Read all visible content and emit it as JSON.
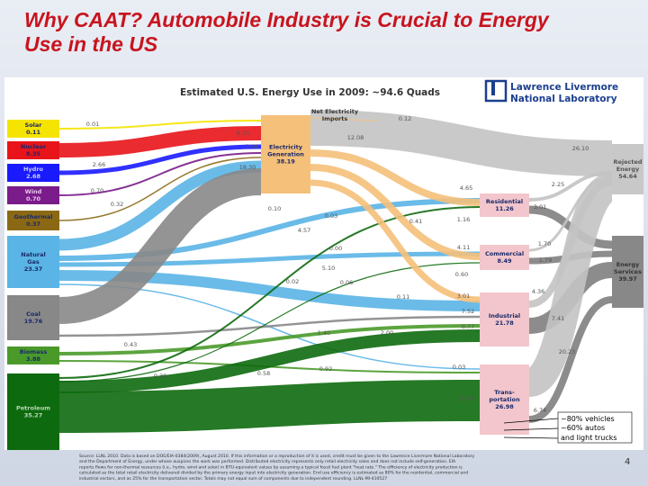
{
  "title": "Why CAAT? Automobile Industry is Crucial to Energy Use in the US",
  "diagram_title": "Estimated U.S. Energy Use in 2009: ~94.6 Quads",
  "logo": [
    "Lawrence Livermore",
    "National Laboratory"
  ],
  "nodes": [
    {
      "lines": [
        "Solar"
      ],
      "value": "0.11"
    },
    {
      "lines": [
        "Nuclear"
      ],
      "value": "8.35"
    },
    {
      "lines": [
        "Hydro"
      ],
      "value": "2.68"
    },
    {
      "lines": [
        "Wind"
      ],
      "value": "0.70"
    },
    {
      "lines": [
        "Geothermal"
      ],
      "value": "0.37"
    },
    {
      "lines": [
        "Natural",
        "Gas"
      ],
      "value": "23.37"
    },
    {
      "lines": [
        "Coal"
      ],
      "value": "19.76"
    },
    {
      "lines": [
        "Biomass"
      ],
      "value": "3.88"
    },
    {
      "lines": [
        "Petroleum"
      ],
      "value": "35.27"
    },
    {
      "lines": [
        "Electricity",
        "Generation"
      ],
      "value": "38.19"
    },
    {
      "lines": [
        "Residential"
      ],
      "value": "11.26"
    },
    {
      "lines": [
        "Commercial"
      ],
      "value": "8.49"
    },
    {
      "lines": [
        "Industrial"
      ],
      "value": "21.78"
    },
    {
      "lines": [
        "Trans-",
        "portation"
      ],
      "value": "26.98"
    },
    {
      "lines": [
        "Rejected",
        "Energy"
      ],
      "value": "54.64"
    },
    {
      "lines": [
        "Energy",
        "Services"
      ],
      "value": "39.97"
    }
  ],
  "imports": {
    "lines": [
      "Net Electricity",
      "Imports"
    ],
    "value": "0.12"
  },
  "flow_labels": [
    "0.01",
    "8.35",
    "7.06",
    "2.66",
    "18.30",
    "0.70",
    "0.32",
    "12.08",
    "26.10",
    "4.65",
    "2.25",
    "3.01",
    "0.10",
    "0.03",
    "0.41",
    "1.16",
    "4.57",
    "0.00",
    "4.11",
    "1.70",
    "1.79",
    "5.10",
    "0.60",
    "0.02",
    "0.06",
    "0.11",
    "3.01",
    "4.36",
    "7.52",
    "7.41",
    "1.40",
    "2.00",
    "0.77",
    "0.43",
    "20.23",
    "0.39",
    "0.58",
    "0.92",
    "0.03",
    "25.34",
    "6.74"
  ],
  "annotation": [
    "~80% vehicles",
    "~60% autos",
    "and light trucks"
  ],
  "footnote": [
    "Source: LLNL 2010. Data is based on DOE/EIA-0384(2009), August 2010. If this information or a reproduction of it is used, credit must be given to the Lawrence Livermore National Laboratory",
    "and the Department of Energy, under whose auspices the work was performed. Distributed electricity represents only retail electricity sales and does not include self-generation. EIA",
    "reports flows for non-thermal resources (i.e., hydro, wind and solar) in BTU-equivalent values by assuming a typical fossil fuel plant \"heat rate.\" The efficiency of electricity production is",
    "calculated as the total retail electricity delivered divided by the primary energy input into electricity generation. End use efficiency is estimated as 80% for the residential, commercial and",
    "industrial sectors, and as 25% for the transportation sector. Totals may not equal sum of components due to independent rounding. LLNL-MI-410527"
  ],
  "page_number": "4"
}
